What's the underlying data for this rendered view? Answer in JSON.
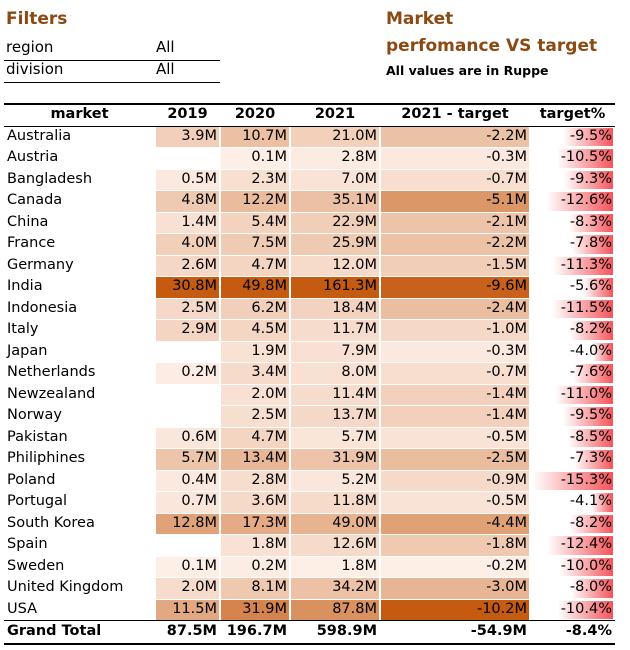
{
  "filters": {
    "title": "Filters",
    "rows": [
      [
        "region",
        "All"
      ],
      [
        "division",
        "All"
      ]
    ]
  },
  "heading": {
    "title": [
      "Market",
      "perfomance VS target"
    ],
    "note": "All values are in Ruppe"
  },
  "table": {
    "header": [
      "market",
      "2019",
      "2020",
      "2021",
      "2021 - target",
      "target%"
    ],
    "rows": [
      [
        "Australia",
        "3.9M",
        "10.7M",
        "21.0M",
        "-2.2M",
        "-9.5%"
      ],
      [
        "Austria",
        null,
        "0.1M",
        "2.8M",
        "-0.3M",
        "-10.5%"
      ],
      [
        "Bangladesh",
        "0.5M",
        "2.3M",
        "7.0M",
        "-0.7M",
        "-9.3%"
      ],
      [
        "Canada",
        "4.8M",
        "12.2M",
        "35.1M",
        "-5.1M",
        "-12.6%"
      ],
      [
        "China",
        "1.4M",
        "5.4M",
        "22.9M",
        "-2.1M",
        "-8.3%"
      ],
      [
        "France",
        "4.0M",
        "7.5M",
        "25.9M",
        "-2.2M",
        "-7.8%"
      ],
      [
        "Germany",
        "2.6M",
        "4.7M",
        "12.0M",
        "-1.5M",
        "-11.3%"
      ],
      [
        "India",
        "30.8M",
        "49.8M",
        "161.3M",
        "-9.6M",
        "-5.6%"
      ],
      [
        "Indonesia",
        "2.5M",
        "6.2M",
        "18.4M",
        "-2.4M",
        "-11.5%"
      ],
      [
        "Italy",
        "2.9M",
        "4.5M",
        "11.7M",
        "-1.0M",
        "-8.2%"
      ],
      [
        "Japan",
        null,
        "1.9M",
        "7.9M",
        "-0.3M",
        "-4.0%"
      ],
      [
        "Netherlands",
        "0.2M",
        "3.4M",
        "8.0M",
        "-0.7M",
        "-7.6%"
      ],
      [
        "Newzealand",
        null,
        "2.0M",
        "11.4M",
        "-1.4M",
        "-11.0%"
      ],
      [
        "Norway",
        null,
        "2.5M",
        "13.7M",
        "-1.4M",
        "-9.5%"
      ],
      [
        "Pakistan",
        "0.6M",
        "4.7M",
        "5.7M",
        "-0.5M",
        "-8.5%"
      ],
      [
        "Philiphines",
        "5.7M",
        "13.4M",
        "31.9M",
        "-2.5M",
        "-7.3%"
      ],
      [
        "Poland",
        "0.4M",
        "2.8M",
        "5.2M",
        "-0.9M",
        "-15.3%"
      ],
      [
        "Portugal",
        "0.7M",
        "3.6M",
        "11.8M",
        "-0.5M",
        "-4.1%"
      ],
      [
        "South Korea",
        "12.8M",
        "17.3M",
        "49.0M",
        "-4.4M",
        "-8.2%"
      ],
      [
        "Spain",
        null,
        "1.8M",
        "12.6M",
        "-1.8M",
        "-12.4%"
      ],
      [
        "Sweden",
        "0.1M",
        "0.2M",
        "1.8M",
        "-0.2M",
        "-10.0%"
      ],
      [
        "United Kingdom",
        "2.0M",
        "8.1M",
        "34.2M",
        "-3.0M",
        "-8.0%"
      ],
      [
        "USA",
        "11.5M",
        "31.9M",
        "87.8M",
        "-10.2M",
        "-10.4%"
      ]
    ],
    "total": [
      "Grand Total",
      "87.5M",
      "196.7M",
      "598.9M",
      "-54.9M",
      "-8.4%"
    ]
  }
}
